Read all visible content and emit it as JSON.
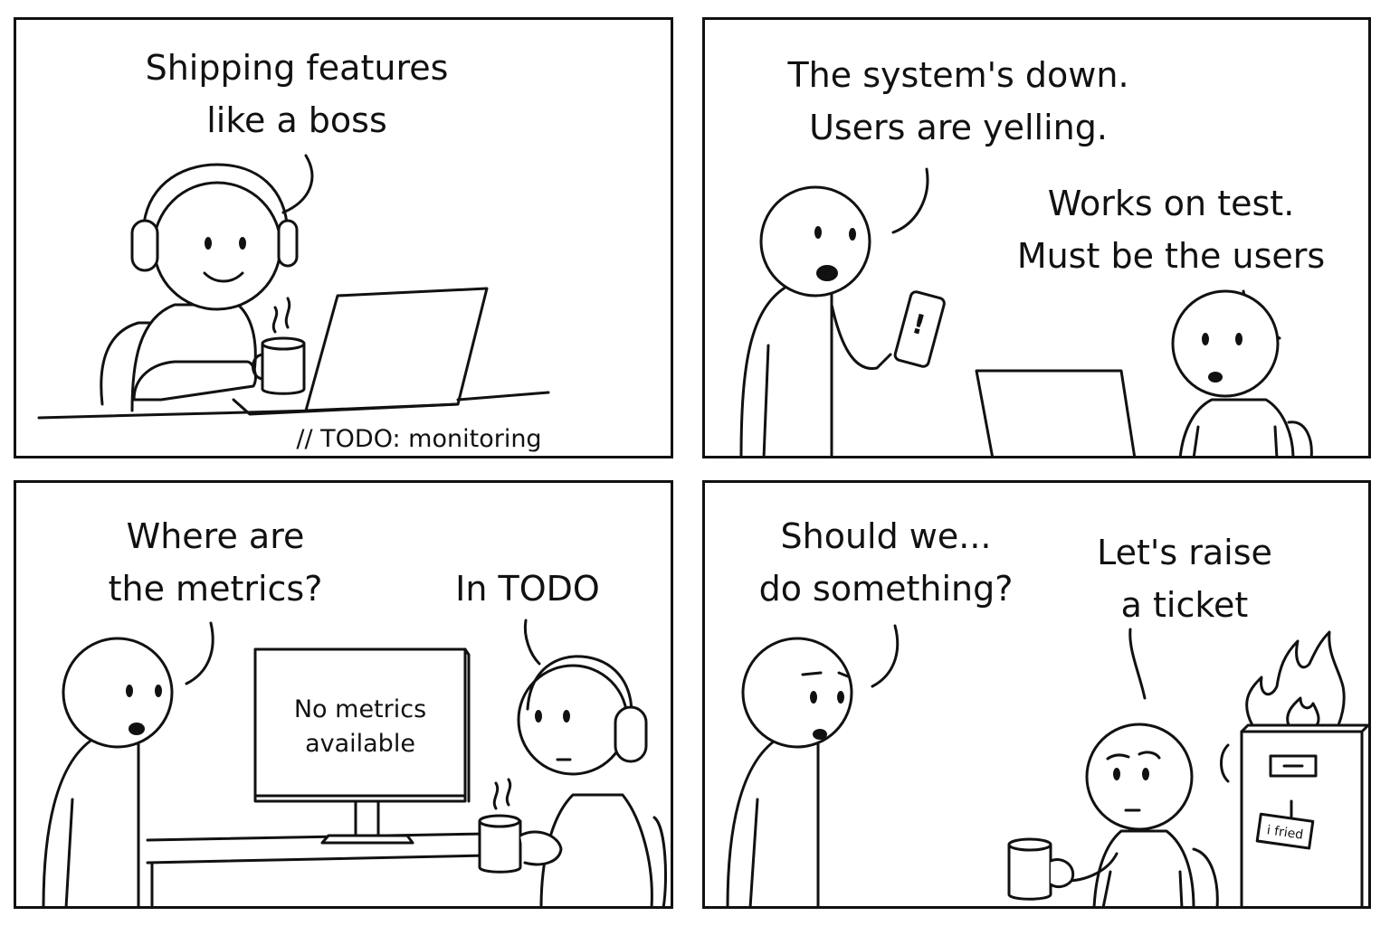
{
  "panels": [
    {
      "speech": [
        "Shipping features",
        "like a boss"
      ],
      "caption": "// TODO: monitoring"
    },
    {
      "speech_left": [
        "The system's down.",
        "Users are yelling."
      ],
      "speech_right": [
        "Works on test.",
        "Must be the users"
      ],
      "phone_symbol": "!"
    },
    {
      "speech_left": [
        "Where are",
        "the metrics?"
      ],
      "speech_right": [
        "In TODO"
      ],
      "monitor_text": [
        "No metrics",
        "available"
      ]
    },
    {
      "speech_left": [
        "Should we...",
        "do something?"
      ],
      "speech_right": [
        "Let's raise",
        "a ticket"
      ],
      "cabinet_tag": "i fried"
    }
  ]
}
